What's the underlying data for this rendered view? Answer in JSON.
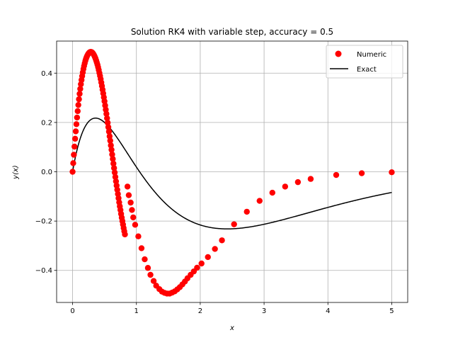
{
  "chart_data": {
    "type": "line",
    "title": "Solution RK4 with variable step, accuracy = 0.5",
    "xlabel": "x",
    "ylabel": "y(x)",
    "xlim": [
      -0.25,
      5.25
    ],
    "ylim": [
      -0.53,
      0.53
    ],
    "xticks": [
      0,
      1,
      2,
      3,
      4,
      5
    ],
    "yticks": [
      -0.4,
      -0.2,
      0.0,
      0.2,
      0.4
    ],
    "xtick_labels": [
      "0",
      "1",
      "2",
      "3",
      "4",
      "5"
    ],
    "ytick_labels": [
      "−0.4",
      "−0.2",
      "0.0",
      "0.2",
      "0.4"
    ],
    "grid": true,
    "legend_position": "top-right",
    "series": [
      {
        "name": "Numeric",
        "kind": "markers",
        "color": "#ff0000",
        "x": [
          0,
          0.01,
          0.02,
          0.03,
          0.04,
          0.05,
          0.06,
          0.07,
          0.08,
          0.09,
          0.1,
          0.11,
          0.12,
          0.13,
          0.14,
          0.15,
          0.16,
          0.17,
          0.18,
          0.19,
          0.2,
          0.21,
          0.22,
          0.23,
          0.24,
          0.25,
          0.26,
          0.27,
          0.28,
          0.29,
          0.3,
          0.31,
          0.32,
          0.33,
          0.34,
          0.35,
          0.36,
          0.37,
          0.38,
          0.39,
          0.4,
          0.41,
          0.42,
          0.43,
          0.44,
          0.45,
          0.46,
          0.47,
          0.48,
          0.49,
          0.5,
          0.51,
          0.52,
          0.53,
          0.54,
          0.55,
          0.56,
          0.57,
          0.58,
          0.59,
          0.6,
          0.61,
          0.62,
          0.63,
          0.64,
          0.65,
          0.66,
          0.67,
          0.68,
          0.69,
          0.7,
          0.71,
          0.72,
          0.73,
          0.74,
          0.75,
          0.76,
          0.77,
          0.78,
          0.79,
          0.8,
          0.81,
          0.82,
          0.86,
          0.88,
          0.91,
          0.93,
          0.95,
          0.98,
          1.03,
          1.08,
          1.13,
          1.18,
          1.22,
          1.27,
          1.31,
          1.36,
          1.4,
          1.44,
          1.48,
          1.52,
          1.56,
          1.6,
          1.64,
          1.68,
          1.72,
          1.76,
          1.8,
          1.85,
          1.9,
          1.95,
          2.02,
          2.12,
          2.23,
          2.34,
          2.53,
          2.73,
          2.93,
          3.13,
          3.33,
          3.53,
          3.73,
          4.13,
          4.53,
          5.0
        ],
        "y": [
          0.0,
          0.035,
          0.069,
          0.102,
          0.134,
          0.164,
          0.193,
          0.22,
          0.246,
          0.271,
          0.294,
          0.316,
          0.336,
          0.355,
          0.372,
          0.388,
          0.403,
          0.417,
          0.429,
          0.44,
          0.45,
          0.458,
          0.465,
          0.471,
          0.476,
          0.48,
          0.483,
          0.485,
          0.486,
          0.486,
          0.485,
          0.483,
          0.48,
          0.476,
          0.471,
          0.465,
          0.459,
          0.451,
          0.443,
          0.434,
          0.424,
          0.413,
          0.401,
          0.389,
          0.376,
          0.362,
          0.348,
          0.333,
          0.318,
          0.302,
          0.286,
          0.269,
          0.252,
          0.235,
          0.217,
          0.199,
          0.181,
          0.163,
          0.144,
          0.126,
          0.107,
          0.089,
          0.07,
          0.052,
          0.033,
          0.015,
          -0.003,
          -0.021,
          -0.039,
          -0.056,
          -0.073,
          -0.09,
          -0.107,
          -0.124,
          -0.14,
          -0.155,
          -0.171,
          -0.186,
          -0.2,
          -0.214,
          -0.228,
          -0.241,
          -0.254,
          -0.06,
          -0.095,
          -0.125,
          -0.155,
          -0.185,
          -0.215,
          -0.262,
          -0.31,
          -0.355,
          -0.39,
          -0.418,
          -0.443,
          -0.462,
          -0.476,
          -0.486,
          -0.491,
          -0.494,
          -0.494,
          -0.49,
          -0.485,
          -0.477,
          -0.468,
          -0.457,
          -0.445,
          -0.432,
          -0.418,
          -0.404,
          -0.389,
          -0.372,
          -0.346,
          -0.313,
          -0.278,
          -0.213,
          -0.162,
          -0.118,
          -0.085,
          -0.06,
          -0.042,
          -0.029,
          -0.013,
          -0.006,
          -0.002
        ]
      },
      {
        "name": "Exact",
        "kind": "line",
        "color": "#000000"
      }
    ]
  }
}
